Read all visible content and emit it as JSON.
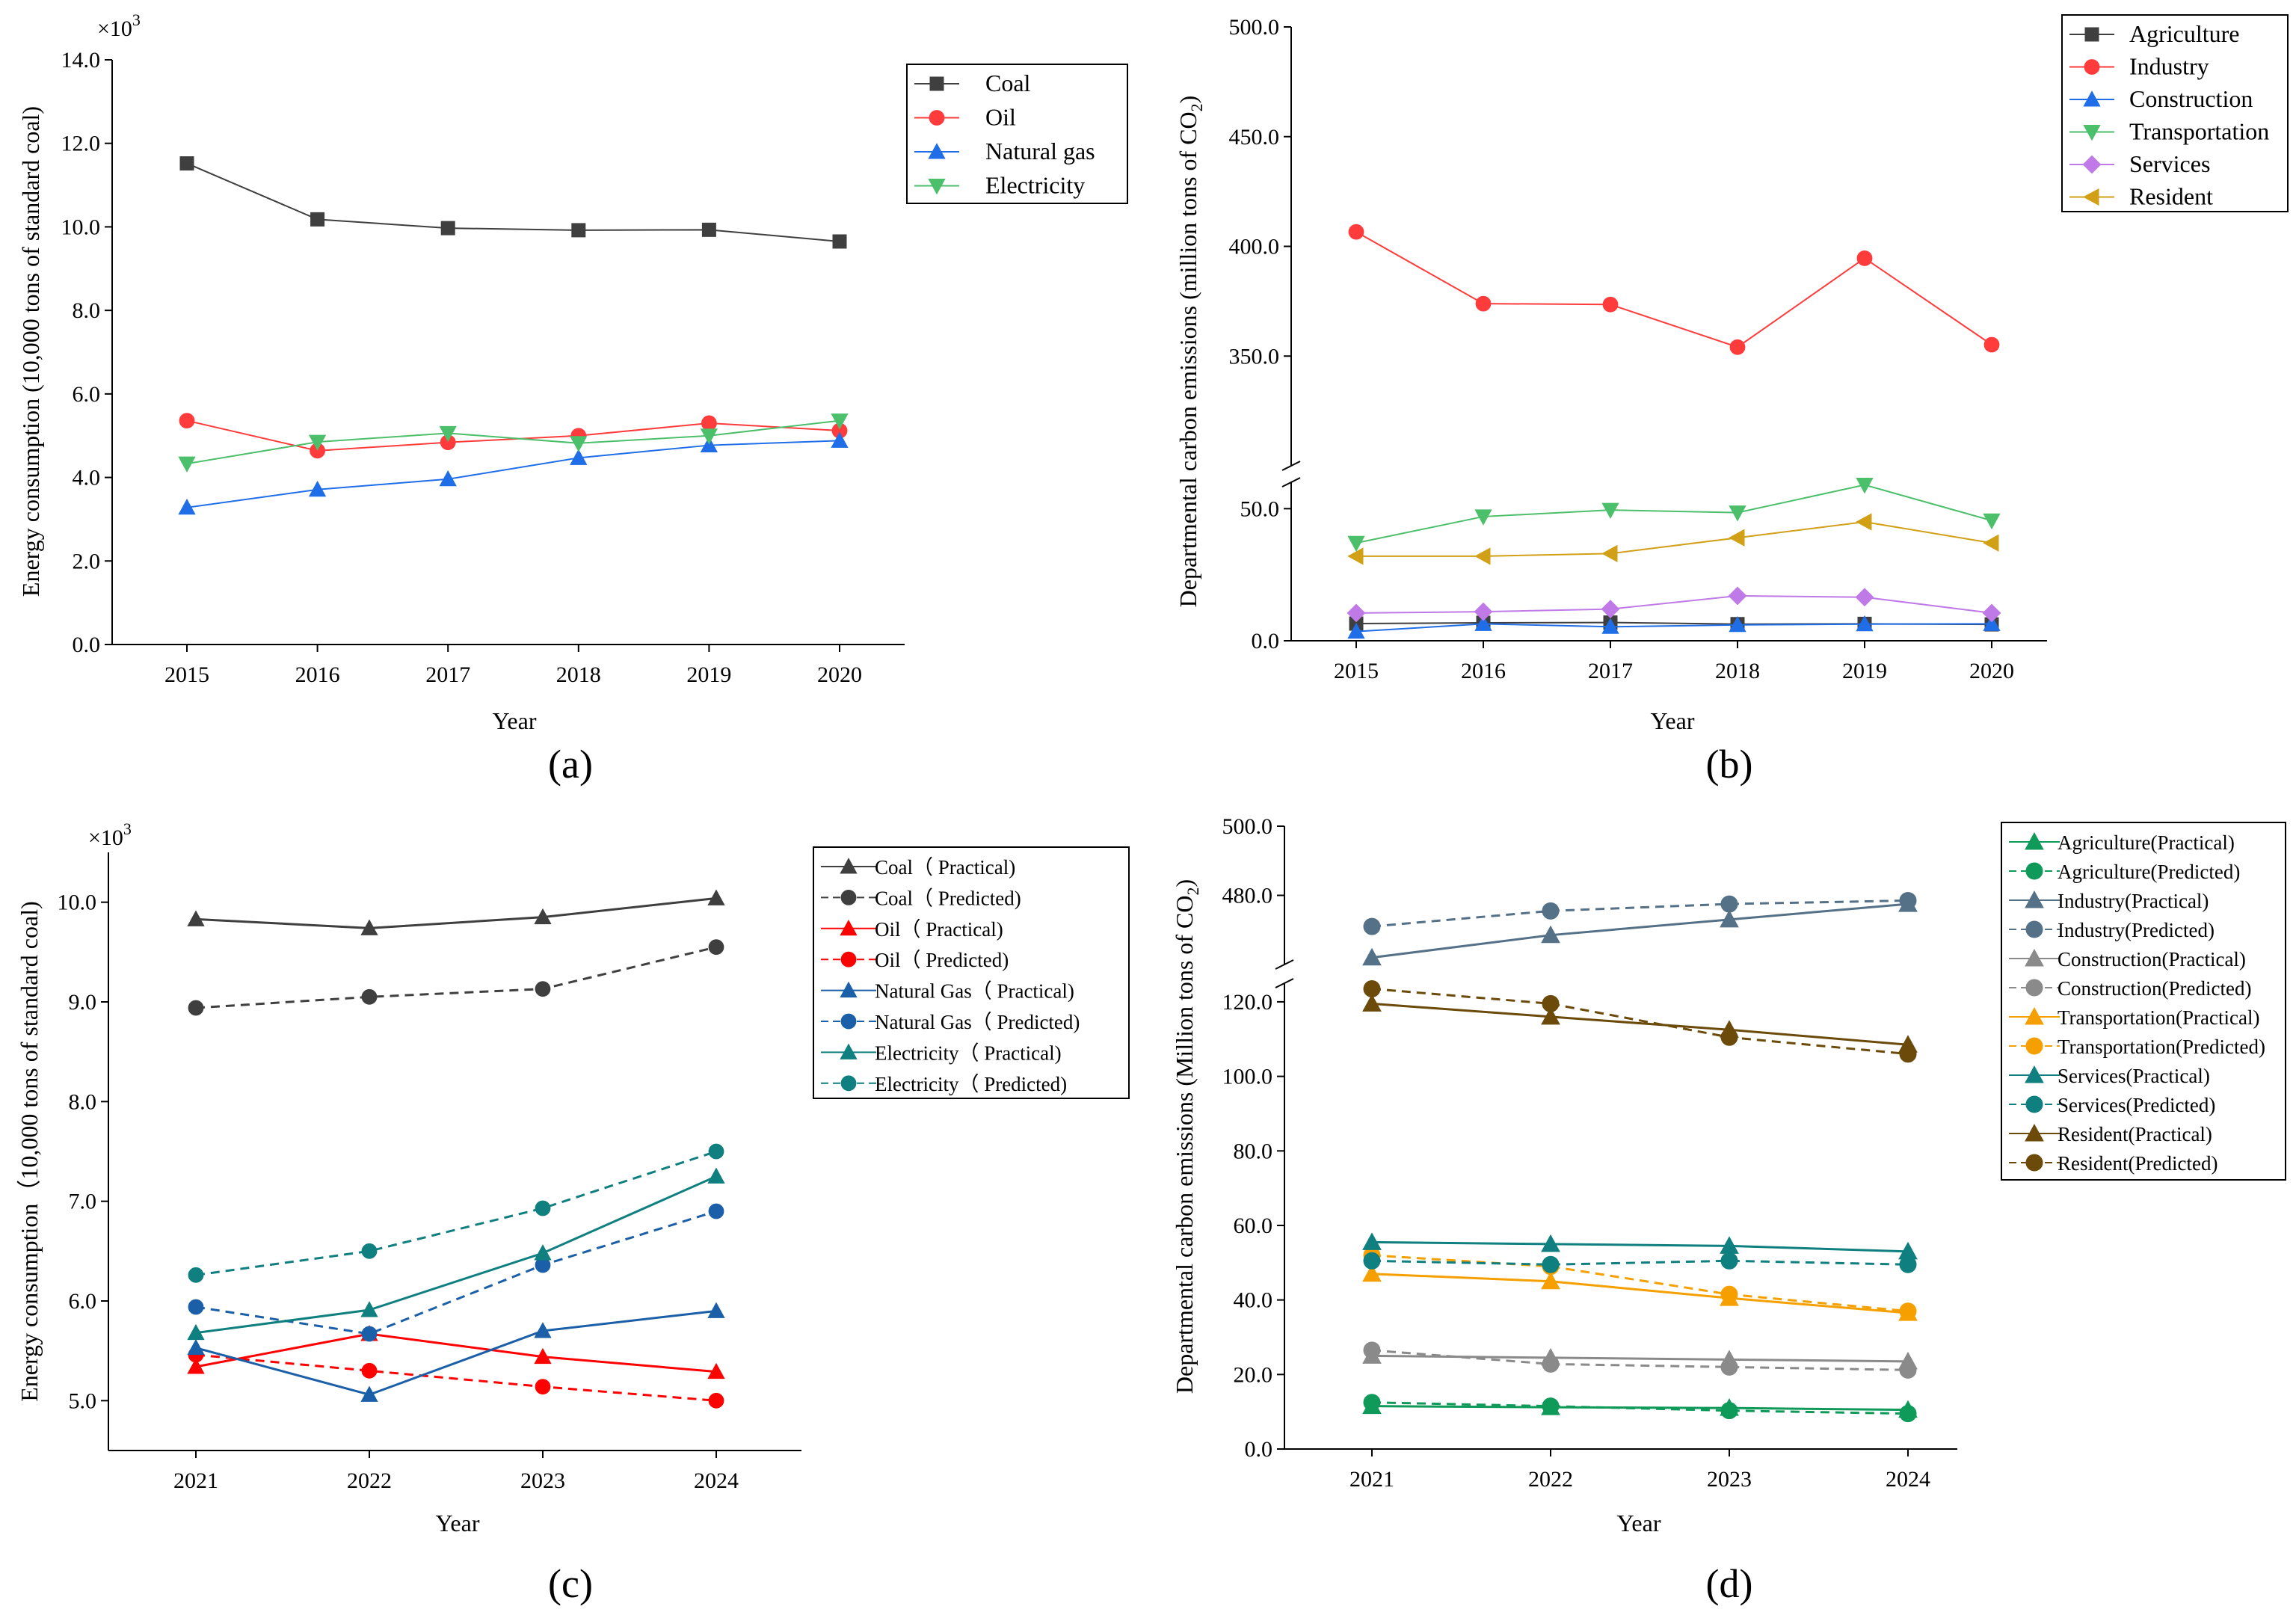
{
  "chart_data": [
    {
      "id": "a",
      "panel_label": "(a)",
      "type": "line",
      "title": "",
      "xlabel": "Year",
      "ylabel": "Energy consumption (10,000 tons of standard coal)",
      "multiplier_label": "×10",
      "multiplier_exp": "3",
      "x": [
        2015,
        2016,
        2017,
        2018,
        2019,
        2020
      ],
      "x_ticks": [
        "2015",
        "2016",
        "2017",
        "2018",
        "2019",
        "2020"
      ],
      "y_ticks": [
        "0.0",
        "2.0",
        "4.0",
        "6.0",
        "8.0",
        "10.0",
        "12.0",
        "14.0"
      ],
      "ylim": [
        0,
        14
      ],
      "legend_position": "top-right",
      "series": [
        {
          "name": "Coal",
          "color": "#3f3f3f",
          "marker": "square",
          "values": [
            11.52,
            10.18,
            9.97,
            9.92,
            9.93,
            9.65
          ]
        },
        {
          "name": "Oil",
          "color": "#ff3b3b",
          "marker": "circle",
          "values": [
            5.36,
            4.64,
            4.84,
            5.0,
            5.3,
            5.12
          ]
        },
        {
          "name": "Natural gas",
          "color": "#1f6ee8",
          "marker": "triangle-up",
          "values": [
            3.28,
            3.71,
            3.96,
            4.47,
            4.77,
            4.88
          ]
        },
        {
          "name": "Electricity",
          "color": "#4cbf6b",
          "marker": "triangle-down",
          "values": [
            4.33,
            4.85,
            5.06,
            4.82,
            5.0,
            5.36
          ]
        }
      ]
    },
    {
      "id": "b",
      "panel_label": "(b)",
      "type": "line",
      "title": "",
      "xlabel": "Year",
      "ylabel_main": "Departmental carbon emissions (million tons of CO",
      "ylabel_sub": "2",
      "ylabel_end": ")",
      "x": [
        2015,
        2016,
        2017,
        2018,
        2019,
        2020
      ],
      "x_ticks": [
        "2015",
        "2016",
        "2017",
        "2018",
        "2019",
        "2020"
      ],
      "y_ticks_lower": [
        "0.0",
        "50.0"
      ],
      "y_ticks_upper": [
        "350.0",
        "400.0",
        "450.0",
        "500.0"
      ],
      "ylim_lower": [
        0,
        60
      ],
      "ylim_upper": [
        300,
        500
      ],
      "axis_break": true,
      "legend_position": "top-right",
      "series": [
        {
          "name": "Agriculture",
          "color": "#3f3f3f",
          "marker": "square",
          "values": [
            6.5,
            6.8,
            6.9,
            6.3,
            6.4,
            6.2
          ]
        },
        {
          "name": "Industry",
          "color": "#ff3b3b",
          "marker": "circle",
          "values": [
            406.6,
            373.9,
            373.5,
            354.1,
            394.6,
            355.2
          ]
        },
        {
          "name": "Construction",
          "color": "#1f6ee8",
          "marker": "triangle-up",
          "values": [
            3.5,
            6.4,
            5.3,
            6.0,
            6.3,
            6.4
          ]
        },
        {
          "name": "Transportation",
          "color": "#4cbf6b",
          "marker": "triangle-down",
          "values": [
            37.0,
            47.0,
            49.5,
            48.5,
            59.0,
            45.5
          ]
        },
        {
          "name": "Services",
          "color": "#c07ae8",
          "marker": "diamond",
          "values": [
            10.5,
            11.0,
            12.0,
            17.0,
            16.5,
            10.5
          ]
        },
        {
          "name": "Resident",
          "color": "#d2a017",
          "marker": "triangle-left",
          "values": [
            32.0,
            32.0,
            33.0,
            39.0,
            45.0,
            37.0
          ]
        }
      ]
    },
    {
      "id": "c",
      "panel_label": "(c)",
      "type": "line",
      "title": "",
      "xlabel": "Year",
      "ylabel": "Energy consumption（10,000 tons of standard coal)",
      "multiplier_label": "×10",
      "multiplier_exp": "3",
      "x": [
        2021,
        2022,
        2023,
        2024
      ],
      "x_ticks": [
        "2021",
        "2022",
        "2023",
        "2024"
      ],
      "y_ticks": [
        "5.0",
        "6.0",
        "7.0",
        "8.0",
        "9.0",
        "10.0"
      ],
      "ylim": [
        4.5,
        10.5
      ],
      "legend_position": "top-right",
      "series": [
        {
          "name": "Coal（ Practical)",
          "color": "#3f3f3f",
          "marker": "triangle-up",
          "dashed": false,
          "values": [
            9.83,
            9.74,
            9.85,
            10.04
          ]
        },
        {
          "name": "Coal（ Predicted)",
          "color": "#3f3f3f",
          "marker": "circle",
          "dashed": true,
          "values": [
            8.94,
            9.05,
            9.13,
            9.55
          ]
        },
        {
          "name": "Oil（ Practical)",
          "color": "#ff0000",
          "marker": "triangle-up",
          "dashed": false,
          "values": [
            5.34,
            5.67,
            5.44,
            5.29
          ]
        },
        {
          "name": "Oil（ Predicted)",
          "color": "#ff0000",
          "marker": "circle",
          "dashed": true,
          "values": [
            5.46,
            5.3,
            5.14,
            5.0
          ]
        },
        {
          "name": "Natural Gas（ Practical)",
          "color": "#1a5fa8",
          "marker": "triangle-up",
          "dashed": false,
          "values": [
            5.53,
            5.06,
            5.7,
            5.9
          ]
        },
        {
          "name": "Natural Gas（ Predicted)",
          "color": "#1a5fa8",
          "marker": "circle",
          "dashed": true,
          "values": [
            5.94,
            5.67,
            6.36,
            6.9
          ]
        },
        {
          "name": "Electricity（ Practical)",
          "color": "#0f7f7f",
          "marker": "triangle-up",
          "dashed": false,
          "values": [
            5.68,
            5.91,
            6.48,
            7.25
          ]
        },
        {
          "name": "Electricity（ Predicted)",
          "color": "#0f7f7f",
          "marker": "circle",
          "dashed": true,
          "values": [
            6.26,
            6.5,
            6.93,
            7.5
          ]
        }
      ]
    },
    {
      "id": "d",
      "panel_label": "(d)",
      "type": "line",
      "title": "",
      "xlabel": "Year",
      "ylabel_main": "Departmental carbon emissions (Million tons of CO",
      "ylabel_sub": "2",
      "ylabel_end": ")",
      "x": [
        2021,
        2022,
        2023,
        2024
      ],
      "x_ticks": [
        "2021",
        "2022",
        "2023",
        "2024"
      ],
      "y_ticks_lower": [
        "0.0",
        "20.0",
        "40.0",
        "60.0",
        "80.0",
        "100.0",
        "120.0"
      ],
      "y_ticks_upper": [
        "480.0",
        "500.0"
      ],
      "ylim_lower": [
        0,
        125
      ],
      "ylim_upper": [
        460,
        500
      ],
      "axis_break": true,
      "legend_position": "top-right",
      "series": [
        {
          "name": "Agriculture(Practical)",
          "color": "#0f9a5a",
          "marker": "triangle-up",
          "dashed": false,
          "values": [
            11.5,
            11.2,
            11.0,
            10.5
          ]
        },
        {
          "name": "Agriculture(Predicted)",
          "color": "#0f9a5a",
          "marker": "circle",
          "dashed": true,
          "values": [
            12.5,
            11.5,
            10.3,
            9.5
          ]
        },
        {
          "name": "Industry(Practical)",
          "color": "#557187",
          "marker": "triangle-up",
          "dashed": false,
          "values": [
            462.0,
            468.5,
            473.0,
            477.5
          ]
        },
        {
          "name": "Industry(Predicted)",
          "color": "#557187",
          "marker": "circle",
          "dashed": true,
          "values": [
            471.0,
            475.5,
            477.5,
            478.5
          ]
        },
        {
          "name": "Construction(Practical)",
          "color": "#8a8a8a",
          "marker": "triangle-up",
          "dashed": false,
          "values": [
            25.0,
            24.5,
            24.0,
            23.5
          ]
        },
        {
          "name": "Construction(Predicted)",
          "color": "#8a8a8a",
          "marker": "circle",
          "dashed": true,
          "values": [
            26.5,
            22.8,
            22.0,
            21.2
          ]
        },
        {
          "name": "Transportation(Practical)",
          "color": "#f5a000",
          "marker": "triangle-up",
          "dashed": false,
          "values": [
            47.0,
            45.0,
            40.5,
            36.5
          ]
        },
        {
          "name": "Transportation(Predicted)",
          "color": "#f5a000",
          "marker": "circle",
          "dashed": true,
          "values": [
            52.0,
            49.0,
            41.5,
            37.0
          ]
        },
        {
          "name": "Services(Practical)",
          "color": "#0f7f7f",
          "marker": "triangle-up",
          "dashed": false,
          "values": [
            55.5,
            55.0,
            54.5,
            53.0
          ]
        },
        {
          "name": "Services(Predicted)",
          "color": "#0f7f7f",
          "marker": "circle",
          "dashed": true,
          "values": [
            50.5,
            49.5,
            50.5,
            49.5
          ]
        },
        {
          "name": "Resident(Practical)",
          "color": "#6b4a0a",
          "marker": "triangle-up",
          "dashed": false,
          "values": [
            119.5,
            116.0,
            112.5,
            108.5
          ]
        },
        {
          "name": "Resident(Predicted)",
          "color": "#6b4a0a",
          "marker": "circle",
          "dashed": true,
          "values": [
            123.5,
            119.5,
            110.5,
            106.0
          ]
        }
      ]
    }
  ]
}
